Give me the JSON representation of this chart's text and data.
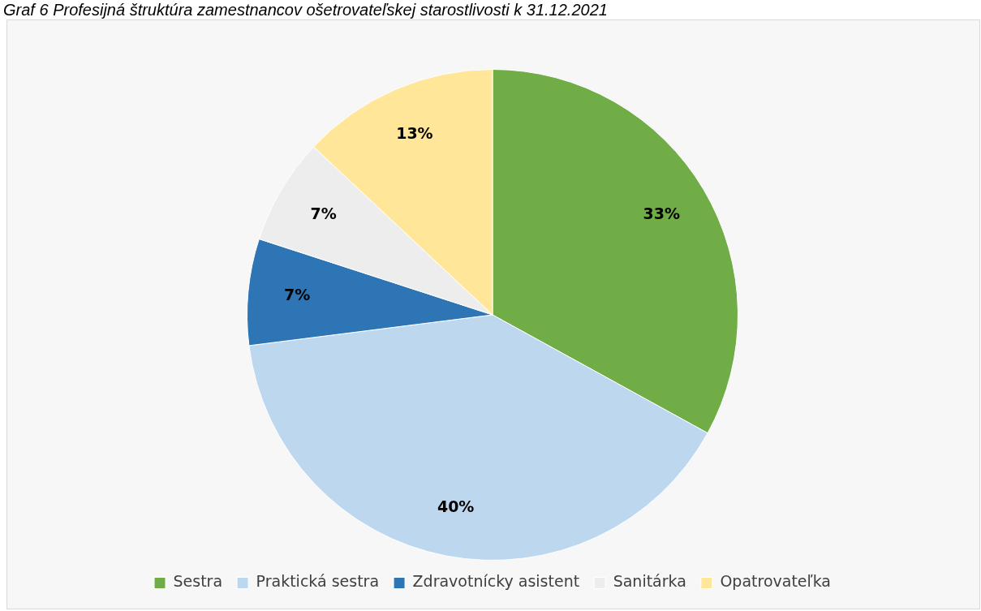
{
  "chart_data": {
    "type": "pie",
    "title": "Graf 6 Profesijná štruktúra zamestnancov ošetrovateľskej starostlivosti k 31.12.2021",
    "categories": [
      "Sestra",
      "Praktická sestra",
      "Zdravotnícky asistent",
      "Sanitárka",
      "Opatrovateľka"
    ],
    "values": [
      33,
      40,
      7,
      7,
      13
    ],
    "colors": [
      "#70ad47",
      "#bdd7ee",
      "#2e75b6",
      "#ededed",
      "#ffe699"
    ],
    "value_labels": [
      "33%",
      "40%",
      "7%",
      "7%",
      "13%"
    ],
    "legend": "bottom"
  }
}
